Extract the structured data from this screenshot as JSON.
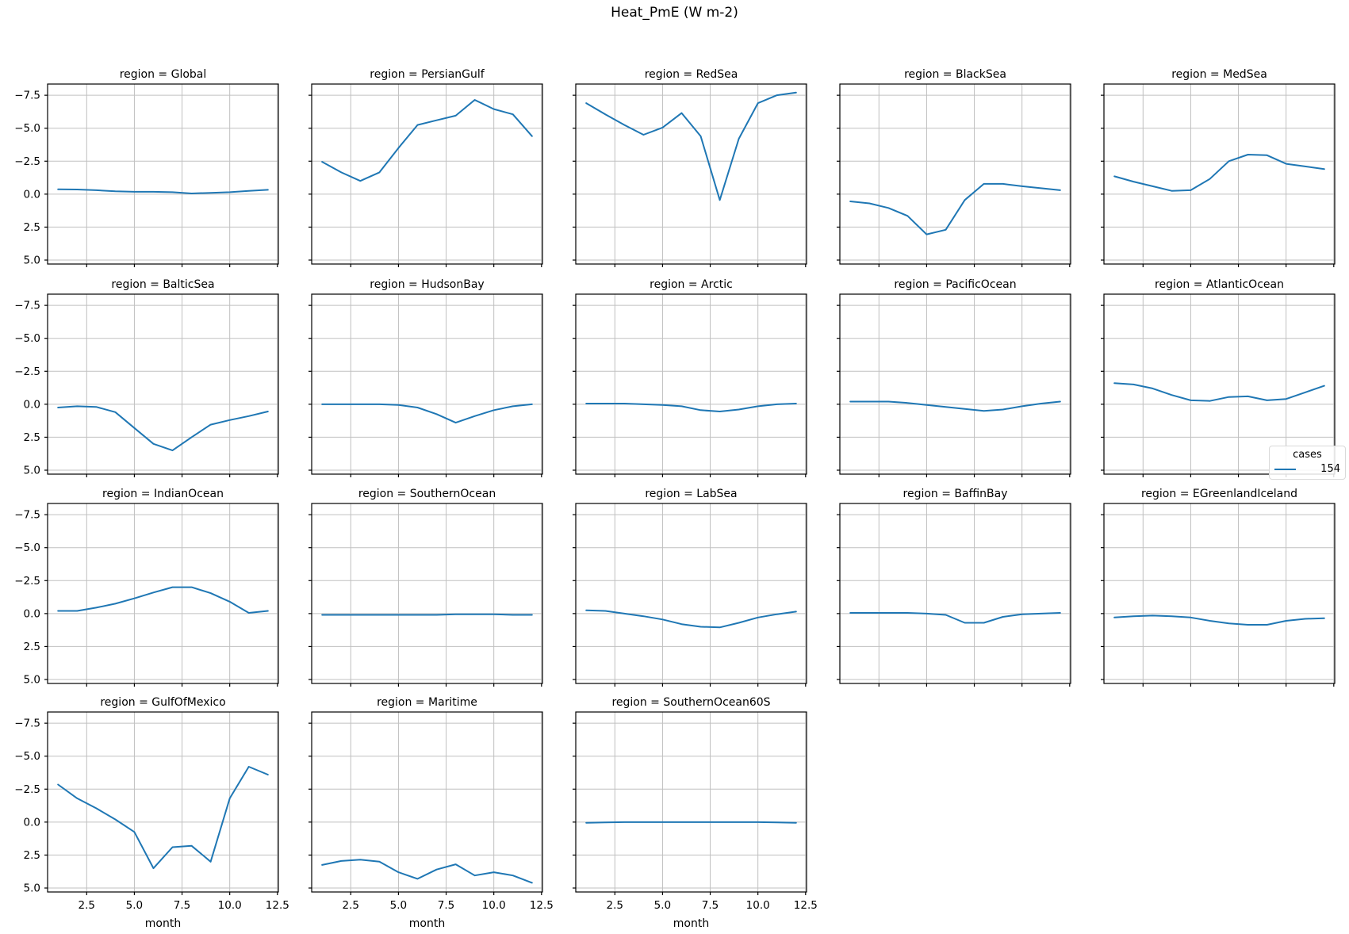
{
  "suptitle": "Heat_PmE (W m-2)",
  "legend": {
    "title": "cases",
    "entries": [
      {
        "label": "154",
        "color": "#1f77b4"
      }
    ]
  },
  "chart_data": {
    "type": "line",
    "title": "Heat_PmE (W m-2)",
    "facet_title_prefix": "region = ",
    "xlabel": "month",
    "x": [
      1,
      2,
      3,
      4,
      5,
      6,
      7,
      8,
      9,
      10,
      11,
      12
    ],
    "xtick_values": [
      2.5,
      5.0,
      7.5,
      10.0,
      12.5
    ],
    "xtick_labels": [
      "2.5",
      "5.0",
      "7.5",
      "10.0",
      "12.5"
    ],
    "ytick_values": [
      -7.5,
      -5.0,
      -2.5,
      0.0,
      2.5,
      5.0
    ],
    "ytick_labels": [
      "−7.5",
      "−5.0",
      "−2.5",
      "0.0",
      "2.5",
      "5.0"
    ],
    "xlim": [
      0.45,
      12.55
    ],
    "ylim_top_to_bottom": [
      -8.35,
      5.3
    ],
    "y_axis_inverted": true,
    "grid": true,
    "line_color": "#1f77b4",
    "grid_color": "#c0c0c0",
    "legend_series_label": "154",
    "legend_title": "cases",
    "facets": [
      {
        "region": "Global",
        "values": [
          -0.37,
          -0.35,
          -0.3,
          -0.22,
          -0.18,
          -0.18,
          -0.15,
          -0.05,
          -0.1,
          -0.15,
          -0.25,
          -0.33
        ]
      },
      {
        "region": "PersianGulf",
        "values": [
          -2.45,
          -1.65,
          -1.0,
          -1.65,
          -3.5,
          -5.25,
          -5.6,
          -5.95,
          -7.15,
          -6.45,
          -6.05,
          -4.4
        ]
      },
      {
        "region": "RedSea",
        "values": [
          -6.9,
          -6.05,
          -5.25,
          -4.5,
          -5.05,
          -6.15,
          -4.4,
          0.45,
          -4.2,
          -6.9,
          -7.5,
          -7.7
        ]
      },
      {
        "region": "BlackSea",
        "values": [
          0.55,
          0.7,
          1.05,
          1.65,
          3.05,
          2.7,
          0.45,
          -0.78,
          -0.78,
          -0.6,
          -0.45,
          -0.3
        ]
      },
      {
        "region": "MedSea",
        "values": [
          -1.35,
          -0.95,
          -0.6,
          -0.25,
          -0.3,
          -1.15,
          -2.5,
          -3.0,
          -2.95,
          -2.3,
          -2.1,
          -1.9
        ]
      },
      {
        "region": "BalticSea",
        "values": [
          0.25,
          0.15,
          0.2,
          0.6,
          1.8,
          3.0,
          3.5,
          2.5,
          1.55,
          1.2,
          0.9,
          0.55
        ]
      },
      {
        "region": "HudsonBay",
        "values": [
          0.0,
          0.0,
          0.0,
          0.0,
          0.05,
          0.25,
          0.75,
          1.4,
          0.9,
          0.45,
          0.15,
          0.0
        ]
      },
      {
        "region": "Arctic",
        "values": [
          -0.05,
          -0.05,
          -0.05,
          0.0,
          0.05,
          0.15,
          0.45,
          0.55,
          0.4,
          0.15,
          0.0,
          -0.05
        ]
      },
      {
        "region": "PacificOcean",
        "values": [
          -0.2,
          -0.2,
          -0.2,
          -0.1,
          0.05,
          0.2,
          0.35,
          0.5,
          0.4,
          0.15,
          -0.05,
          -0.2
        ]
      },
      {
        "region": "AtlanticOcean",
        "values": [
          -1.6,
          -1.5,
          -1.2,
          -0.7,
          -0.3,
          -0.25,
          -0.55,
          -0.6,
          -0.3,
          -0.4,
          -0.9,
          -1.4
        ]
      },
      {
        "region": "IndianOcean",
        "values": [
          -0.2,
          -0.2,
          -0.45,
          -0.75,
          -1.15,
          -1.6,
          -2.0,
          -2.0,
          -1.55,
          -0.9,
          -0.05,
          -0.2
        ]
      },
      {
        "region": "SouthernOcean",
        "values": [
          0.1,
          0.1,
          0.1,
          0.1,
          0.1,
          0.1,
          0.1,
          0.05,
          0.05,
          0.05,
          0.1,
          0.1
        ]
      },
      {
        "region": "LabSea",
        "values": [
          -0.25,
          -0.2,
          0.0,
          0.2,
          0.45,
          0.8,
          1.0,
          1.05,
          0.7,
          0.3,
          0.05,
          -0.15
        ]
      },
      {
        "region": "BaffinBay",
        "values": [
          -0.05,
          -0.05,
          -0.05,
          -0.05,
          0.0,
          0.1,
          0.7,
          0.7,
          0.25,
          0.05,
          0.0,
          -0.05
        ]
      },
      {
        "region": "EGreenlandIceland",
        "values": [
          0.3,
          0.2,
          0.15,
          0.2,
          0.3,
          0.55,
          0.75,
          0.85,
          0.85,
          0.55,
          0.4,
          0.35
        ]
      },
      {
        "region": "GulfOfMexico",
        "values": [
          -2.85,
          -1.8,
          -1.05,
          -0.2,
          0.75,
          3.5,
          1.9,
          1.8,
          3.0,
          -1.8,
          -4.2,
          -3.6
        ]
      },
      {
        "region": "Maritime",
        "values": [
          3.25,
          2.95,
          2.85,
          3.0,
          3.8,
          4.3,
          3.6,
          3.2,
          4.05,
          3.8,
          4.05,
          4.6
        ]
      },
      {
        "region": "SouthernOcean60S",
        "values": [
          0.05,
          0.02,
          0.0,
          0.0,
          0.0,
          0.0,
          0.0,
          0.0,
          0.0,
          0.0,
          0.02,
          0.05
        ]
      }
    ]
  }
}
